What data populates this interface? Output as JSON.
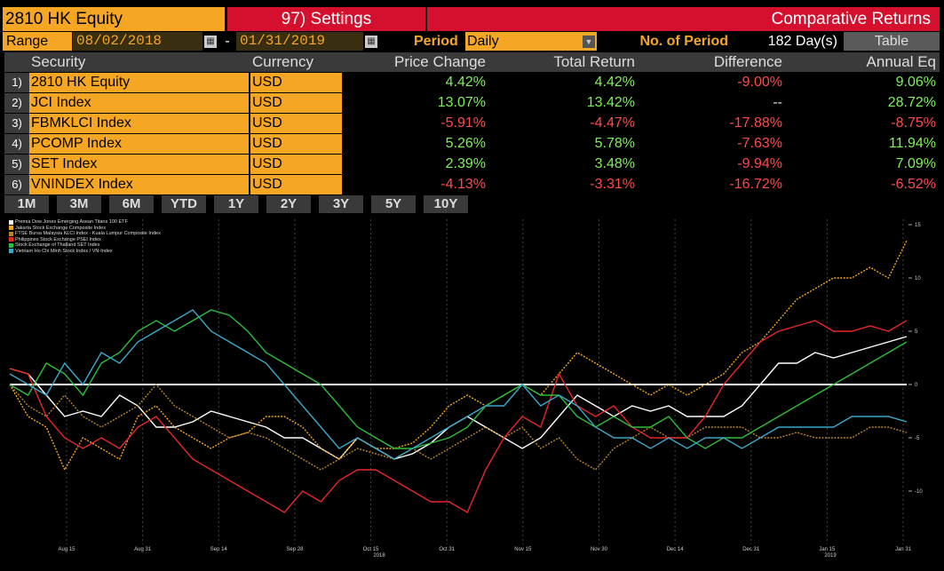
{
  "header": {
    "ticker": "2810 HK Equity",
    "settings": "97) Settings",
    "title": "Comparative Returns"
  },
  "range": {
    "label": "Range",
    "start": "08/02/2018",
    "end": "01/31/2019",
    "dash": "-"
  },
  "period": {
    "label": "Period",
    "value": "Daily"
  },
  "nop": {
    "label": "No. of Period",
    "value": "182 Day(s)"
  },
  "table_button": "Table",
  "columns": [
    "Security",
    "Currency",
    "Price Change",
    "Total Return",
    "Difference",
    "Annual Eq"
  ],
  "rows": [
    {
      "num": "1)",
      "security": "2810 HK Equity",
      "currency": "USD",
      "price_change": "4.42%",
      "total_return": "4.42%",
      "difference": "-9.00%",
      "annual_eq": "9.06%"
    },
    {
      "num": "2)",
      "security": "JCI Index",
      "currency": "USD",
      "price_change": "13.07%",
      "total_return": "13.42%",
      "difference": "--",
      "annual_eq": "28.72%"
    },
    {
      "num": "3)",
      "security": "FBMKLCI Index",
      "currency": "USD",
      "price_change": "-5.91%",
      "total_return": "-4.47%",
      "difference": "-17.88%",
      "annual_eq": "-8.75%"
    },
    {
      "num": "4)",
      "security": "PCOMP Index",
      "currency": "USD",
      "price_change": "5.26%",
      "total_return": "5.78%",
      "difference": "-7.63%",
      "annual_eq": "11.94%"
    },
    {
      "num": "5)",
      "security": "SET Index",
      "currency": "USD",
      "price_change": "2.39%",
      "total_return": "3.48%",
      "difference": "-9.94%",
      "annual_eq": "7.09%"
    },
    {
      "num": "6)",
      "security": "VNINDEX Index",
      "currency": "USD",
      "price_change": "-4.13%",
      "total_return": "-3.31%",
      "difference": "-16.72%",
      "annual_eq": "-6.52%"
    }
  ],
  "horizons": [
    "1M",
    "3M",
    "6M",
    "YTD",
    "1Y",
    "2Y",
    "3Y",
    "5Y",
    "10Y"
  ],
  "colors": {
    "orange": "#f5a623",
    "red": "#d5102e",
    "positive": "#7ef05a",
    "negative": "#ff4a4a"
  },
  "chart_data": {
    "type": "line",
    "ylim": [
      -15,
      15
    ],
    "yticks": [
      "15",
      "10",
      "5",
      "0",
      "-5",
      "-10"
    ],
    "xticks": [
      "Aug 15",
      "Aug 31",
      "Sep 14",
      "Sep 28",
      "Oct 15",
      "Oct 31",
      "Nov 15",
      "Nov 30",
      "Dec 14",
      "Dec 31",
      "Jan 15",
      "Jan 31"
    ],
    "xyears": [
      "2018",
      "2019"
    ],
    "series": [
      {
        "name": "Premia Dow Jones Emerging Asean Titans 100 ETF",
        "color": "#ffffff",
        "values": [
          1.5,
          1,
          -1,
          -3,
          -2.5,
          -3,
          -1,
          -2,
          -4,
          -4,
          -3.5,
          -2.5,
          -3,
          -3.5,
          -4,
          -5,
          -5,
          -6,
          -7,
          -5,
          -6,
          -7,
          -6.5,
          -5.5,
          -4,
          -3,
          -4,
          -5,
          -6,
          -5,
          -3,
          -1,
          -2,
          -3,
          -2,
          -2.5,
          -2,
          -3,
          -3,
          -3,
          -2,
          0,
          2,
          2,
          3,
          2.5,
          3,
          3.5,
          4,
          4.5
        ]
      },
      {
        "name": "Jakarta Stock Exchange Composite Index",
        "color": "#f5a623",
        "values": [
          0,
          -3,
          -4,
          -8,
          -5,
          -6,
          -7,
          -3,
          -2,
          -4,
          -5,
          -6,
          -5,
          -4.5,
          -3,
          -3,
          -4,
          -6,
          -7,
          -5,
          -6,
          -6,
          -5.5,
          -4,
          -2,
          -1,
          -2,
          -1,
          0,
          -1,
          1,
          3,
          2,
          1,
          0,
          -1,
          0,
          -1,
          0,
          1,
          3,
          4,
          6,
          8,
          9,
          10,
          10,
          11,
          10,
          13.5
        ]
      },
      {
        "name": "FTSE Bursa Malaysia KLCI Index - Kuala Lumpur Composite Index",
        "color": "#b8862a",
        "values": [
          0,
          -2,
          -3,
          -1,
          -3,
          -4,
          -3,
          -2,
          0,
          -2,
          -3,
          -4,
          -5,
          -4.5,
          -5,
          -6,
          -7,
          -8,
          -7,
          -6,
          -6.5,
          -7,
          -6,
          -7,
          -6,
          -5,
          -4,
          -5,
          -4,
          -6,
          -5,
          -7,
          -8,
          -6,
          -5,
          -4,
          -5,
          -5,
          -4,
          -4,
          -4,
          -5,
          -5,
          -4.5,
          -5,
          -5,
          -5,
          -4,
          -4,
          -4.5
        ]
      },
      {
        "name": "Philippines Stock Exchange PSEI Index",
        "color": "#e8262a",
        "values": [
          1.5,
          1,
          -3,
          -5,
          -6,
          -5,
          -6,
          -4,
          -3,
          -5,
          -7,
          -8,
          -9,
          -10,
          -11,
          -12,
          -10,
          -11,
          -9,
          -8,
          -8,
          -9,
          -10,
          -11,
          -11,
          -12,
          -8,
          -5,
          -3,
          -4,
          1,
          -2,
          -3,
          -2,
          -4,
          -5,
          -5,
          -5,
          -3,
          0,
          2,
          4,
          5,
          5.5,
          6,
          5,
          5,
          5.5,
          5,
          6
        ]
      },
      {
        "name": "Stock Exchange of Thailand SET Index",
        "color": "#2bbf3a",
        "values": [
          0,
          -1,
          2,
          1,
          -1,
          2,
          3,
          5,
          6,
          5,
          6,
          7,
          6.5,
          5,
          3,
          2,
          1,
          0,
          -2,
          -4,
          -5,
          -6,
          -6,
          -5.5,
          -5,
          -4,
          -2,
          -1,
          0,
          -1,
          -1,
          -3,
          -4,
          -3,
          -4,
          -4,
          -3,
          -5,
          -6,
          -5,
          -5,
          -4,
          -3,
          -2,
          -1,
          0,
          1,
          2,
          3,
          4
        ]
      },
      {
        "name": "Vietnam Ho Chi Minh Stock Index / VN-Index",
        "color": "#3ba8c8",
        "values": [
          1,
          0,
          -1,
          2,
          0,
          3,
          2,
          4,
          5,
          6,
          7,
          5,
          4,
          3,
          2,
          0,
          -2,
          -4,
          -6,
          -5,
          -6,
          -7,
          -6,
          -5,
          -4,
          -3,
          -2,
          -2,
          0,
          -2,
          -1,
          -2,
          -4,
          -5,
          -5,
          -6,
          -5,
          -6,
          -5,
          -5,
          -6,
          -5,
          -4,
          -4,
          -4,
          -4,
          -3,
          -3,
          -3,
          -3.5
        ]
      }
    ]
  }
}
